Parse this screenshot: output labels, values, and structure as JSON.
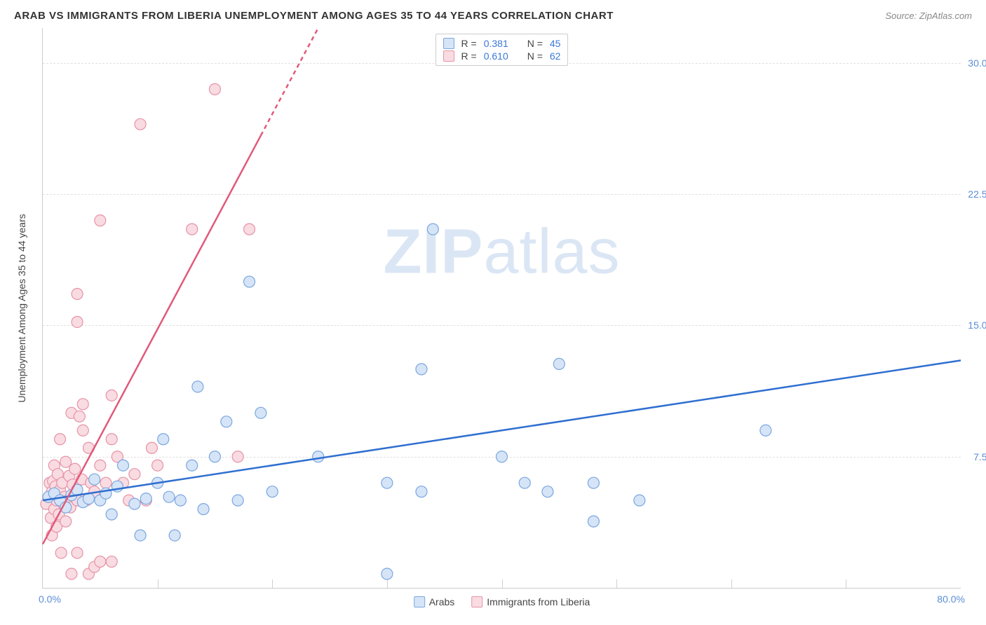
{
  "title": "ARAB VS IMMIGRANTS FROM LIBERIA UNEMPLOYMENT AMONG AGES 35 TO 44 YEARS CORRELATION CHART",
  "source_label": "Source: ZipAtlas.com",
  "watermark": {
    "bold": "ZIP",
    "light": "atlas"
  },
  "chart": {
    "type": "scatter",
    "y_axis_label": "Unemployment Among Ages 35 to 44 years",
    "x_origin_label": "0.0%",
    "x_max_label": "80.0%",
    "xlim": [
      0,
      80
    ],
    "ylim": [
      0,
      32
    ],
    "y_ticks": [
      7.5,
      15.0,
      22.5,
      30.0
    ],
    "y_tick_labels": [
      "7.5%",
      "15.0%",
      "22.5%",
      "30.0%"
    ],
    "x_ticks": [
      10,
      20,
      30,
      40,
      50,
      60,
      70
    ],
    "grid_color": "#e0e0e0",
    "background_color": "#ffffff",
    "marker_radius": 8,
    "marker_stroke_width": 1.2,
    "line_width": 2.5,
    "series": [
      {
        "name": "Arabs",
        "fill": "#d6e4f7",
        "stroke": "#7aa7e0",
        "line_color": "#2f6fd0",
        "R": "0.381",
        "N": "45",
        "trend": {
          "x1": 0,
          "y1": 5.0,
          "x2": 80,
          "y2": 13.0
        },
        "trend_dashed_from_x": null,
        "points": [
          [
            0.5,
            5.2
          ],
          [
            1,
            5.4
          ],
          [
            1.5,
            5.0
          ],
          [
            2,
            4.6
          ],
          [
            2.5,
            5.3
          ],
          [
            3,
            5.6
          ],
          [
            3.5,
            4.9
          ],
          [
            4,
            5.1
          ],
          [
            4.5,
            6.2
          ],
          [
            5,
            5.0
          ],
          [
            5.5,
            5.4
          ],
          [
            6,
            4.2
          ],
          [
            6.5,
            5.8
          ],
          [
            7,
            7.0
          ],
          [
            8,
            4.8
          ],
          [
            8.5,
            3.0
          ],
          [
            9,
            5.1
          ],
          [
            10,
            6.0
          ],
          [
            10.5,
            8.5
          ],
          [
            11,
            5.2
          ],
          [
            11.5,
            3.0
          ],
          [
            12,
            5.0
          ],
          [
            13,
            7.0
          ],
          [
            13.5,
            11.5
          ],
          [
            14,
            4.5
          ],
          [
            15,
            7.5
          ],
          [
            16,
            9.5
          ],
          [
            17,
            5.0
          ],
          [
            18,
            17.5
          ],
          [
            19,
            10.0
          ],
          [
            20,
            5.5
          ],
          [
            24,
            7.5
          ],
          [
            30,
            6.0
          ],
          [
            33,
            12.5
          ],
          [
            33,
            5.5
          ],
          [
            34,
            20.5
          ],
          [
            40,
            7.5
          ],
          [
            42,
            6.0
          ],
          [
            44,
            5.5
          ],
          [
            45,
            12.8
          ],
          [
            48,
            3.8
          ],
          [
            48,
            6.0
          ],
          [
            52,
            5.0
          ],
          [
            63,
            9.0
          ],
          [
            30,
            0.8
          ]
        ]
      },
      {
        "name": "Immigrants from Liberia",
        "fill": "#f9dbe2",
        "stroke": "#e693a6",
        "line_color": "#e05a7a",
        "R": "0.610",
        "N": "62",
        "trend": {
          "x1": 0,
          "y1": 2.5,
          "x2": 24,
          "y2": 32
        },
        "trend_dashed_from_x": 19,
        "points": [
          [
            0.3,
            4.8
          ],
          [
            0.5,
            5.2
          ],
          [
            0.6,
            6.0
          ],
          [
            0.7,
            4.0
          ],
          [
            0.8,
            5.5
          ],
          [
            0.8,
            3.0
          ],
          [
            0.9,
            6.1
          ],
          [
            1.0,
            4.5
          ],
          [
            1.0,
            7.0
          ],
          [
            1.1,
            5.8
          ],
          [
            1.2,
            3.5
          ],
          [
            1.2,
            5.0
          ],
          [
            1.3,
            6.5
          ],
          [
            1.4,
            4.2
          ],
          [
            1.5,
            5.6
          ],
          [
            1.5,
            8.5
          ],
          [
            1.6,
            2.0
          ],
          [
            1.7,
            6.0
          ],
          [
            1.8,
            4.8
          ],
          [
            1.9,
            5.2
          ],
          [
            2.0,
            7.2
          ],
          [
            2.0,
            3.8
          ],
          [
            2.2,
            5.0
          ],
          [
            2.3,
            6.4
          ],
          [
            2.4,
            4.6
          ],
          [
            2.5,
            10.0
          ],
          [
            2.6,
            5.9
          ],
          [
            2.8,
            6.8
          ],
          [
            3.0,
            2.0
          ],
          [
            3.0,
            5.0
          ],
          [
            3.0,
            16.8
          ],
          [
            3.0,
            15.2
          ],
          [
            3.2,
            9.8
          ],
          [
            3.4,
            6.2
          ],
          [
            3.5,
            9.0
          ],
          [
            3.5,
            10.5
          ],
          [
            3.8,
            5.0
          ],
          [
            4.0,
            8.0
          ],
          [
            4.0,
            0.8
          ],
          [
            4.2,
            6.0
          ],
          [
            4.5,
            5.5
          ],
          [
            4.5,
            1.2
          ],
          [
            5.0,
            21.0
          ],
          [
            5.0,
            7.0
          ],
          [
            5.0,
            1.5
          ],
          [
            5.5,
            6.0
          ],
          [
            6.0,
            8.5
          ],
          [
            6.0,
            1.5
          ],
          [
            6.0,
            11.0
          ],
          [
            6.5,
            7.5
          ],
          [
            7.0,
            6.0
          ],
          [
            7.5,
            5.0
          ],
          [
            8.0,
            6.5
          ],
          [
            8.5,
            26.5
          ],
          [
            9.0,
            5.0
          ],
          [
            9.5,
            8.0
          ],
          [
            10.0,
            7.0
          ],
          [
            13.0,
            20.5
          ],
          [
            15.0,
            28.5
          ],
          [
            17.0,
            7.5
          ],
          [
            18.0,
            20.5
          ],
          [
            2.5,
            0.8
          ]
        ]
      }
    ],
    "legend_top": {
      "r_label": "R =",
      "n_label": "N ="
    },
    "legend_bottom": {
      "items": [
        "Arabs",
        "Immigrants from Liberia"
      ]
    }
  }
}
